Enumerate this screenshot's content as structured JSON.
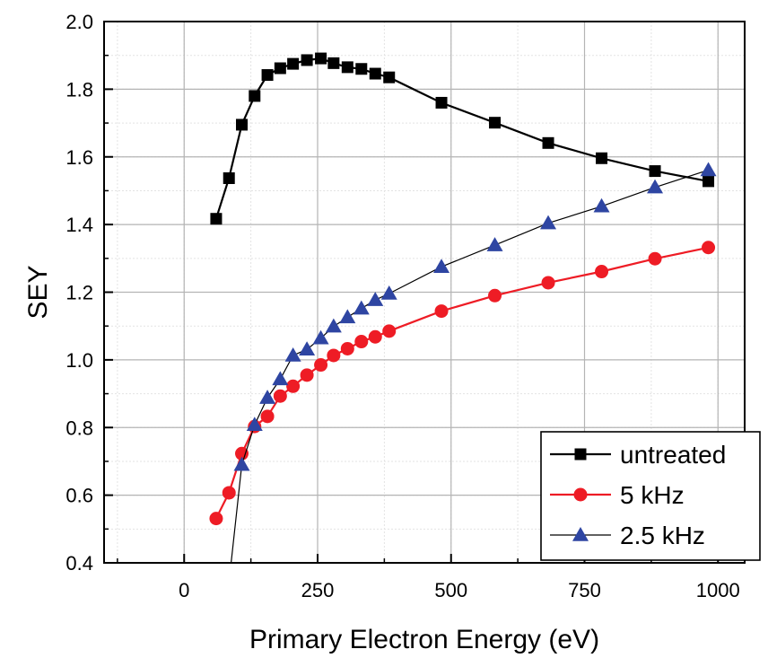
{
  "chart_data": {
    "type": "line",
    "title": "",
    "xlabel": "Primary Electron Energy (eV)",
    "ylabel": "SEY",
    "xlim": [
      -150,
      1050
    ],
    "ylim": [
      0.4,
      2.0
    ],
    "xticks": [
      0,
      250,
      500,
      750,
      1000
    ],
    "yticks": [
      0.4,
      0.6,
      0.8,
      1.0,
      1.2,
      1.4,
      1.6,
      1.8,
      2.0
    ],
    "xtick_labels": [
      "0",
      "250",
      "500",
      "750",
      "1000"
    ],
    "ytick_labels": [
      "0.4",
      "0.6",
      "0.8",
      "1.0",
      "1.2",
      "1.4",
      "1.6",
      "1.8",
      "2.0"
    ],
    "grid": true,
    "legend_position": "bottom-right",
    "series": [
      {
        "name": "untreated",
        "color": "#000000",
        "marker": "square",
        "points": [
          [
            60,
            1.417
          ],
          [
            84,
            1.537
          ],
          [
            108,
            1.695
          ],
          [
            132,
            1.78
          ],
          [
            156,
            1.842
          ],
          [
            180,
            1.862
          ],
          [
            204,
            1.875
          ],
          [
            230,
            1.886
          ],
          [
            256,
            1.891
          ],
          [
            280,
            1.877
          ],
          [
            306,
            1.865
          ],
          [
            332,
            1.86
          ],
          [
            358,
            1.846
          ],
          [
            384,
            1.835
          ],
          [
            482,
            1.76
          ],
          [
            582,
            1.701
          ],
          [
            682,
            1.641
          ],
          [
            782,
            1.596
          ],
          [
            882,
            1.558
          ],
          [
            982,
            1.528
          ]
        ]
      },
      {
        "name": "5 kHz",
        "color": "#ee1c25",
        "marker": "circle",
        "points": [
          [
            60,
            0.531
          ],
          [
            84,
            0.607
          ],
          [
            108,
            0.723
          ],
          [
            132,
            0.803
          ],
          [
            156,
            0.833
          ],
          [
            180,
            0.893
          ],
          [
            204,
            0.922
          ],
          [
            230,
            0.955
          ],
          [
            256,
            0.985
          ],
          [
            280,
            1.013
          ],
          [
            306,
            1.033
          ],
          [
            332,
            1.054
          ],
          [
            358,
            1.068
          ],
          [
            384,
            1.085
          ],
          [
            482,
            1.144
          ],
          [
            582,
            1.19
          ],
          [
            682,
            1.228
          ],
          [
            782,
            1.261
          ],
          [
            882,
            1.299
          ],
          [
            982,
            1.332
          ]
        ]
      },
      {
        "name": "2.5 kHz",
        "color": "#2e45a2",
        "marker": "triangle",
        "line_extension": [
          [
            88,
            0.4
          ]
        ],
        "points": [
          [
            108,
            0.69
          ],
          [
            132,
            0.808
          ],
          [
            156,
            0.888
          ],
          [
            180,
            0.943
          ],
          [
            204,
            1.013
          ],
          [
            230,
            1.031
          ],
          [
            256,
            1.064
          ],
          [
            280,
            1.099
          ],
          [
            306,
            1.126
          ],
          [
            332,
            1.152
          ],
          [
            358,
            1.177
          ],
          [
            384,
            1.196
          ],
          [
            482,
            1.275
          ],
          [
            582,
            1.339
          ],
          [
            682,
            1.404
          ],
          [
            782,
            1.454
          ],
          [
            882,
            1.51
          ],
          [
            982,
            1.561
          ]
        ]
      }
    ]
  }
}
